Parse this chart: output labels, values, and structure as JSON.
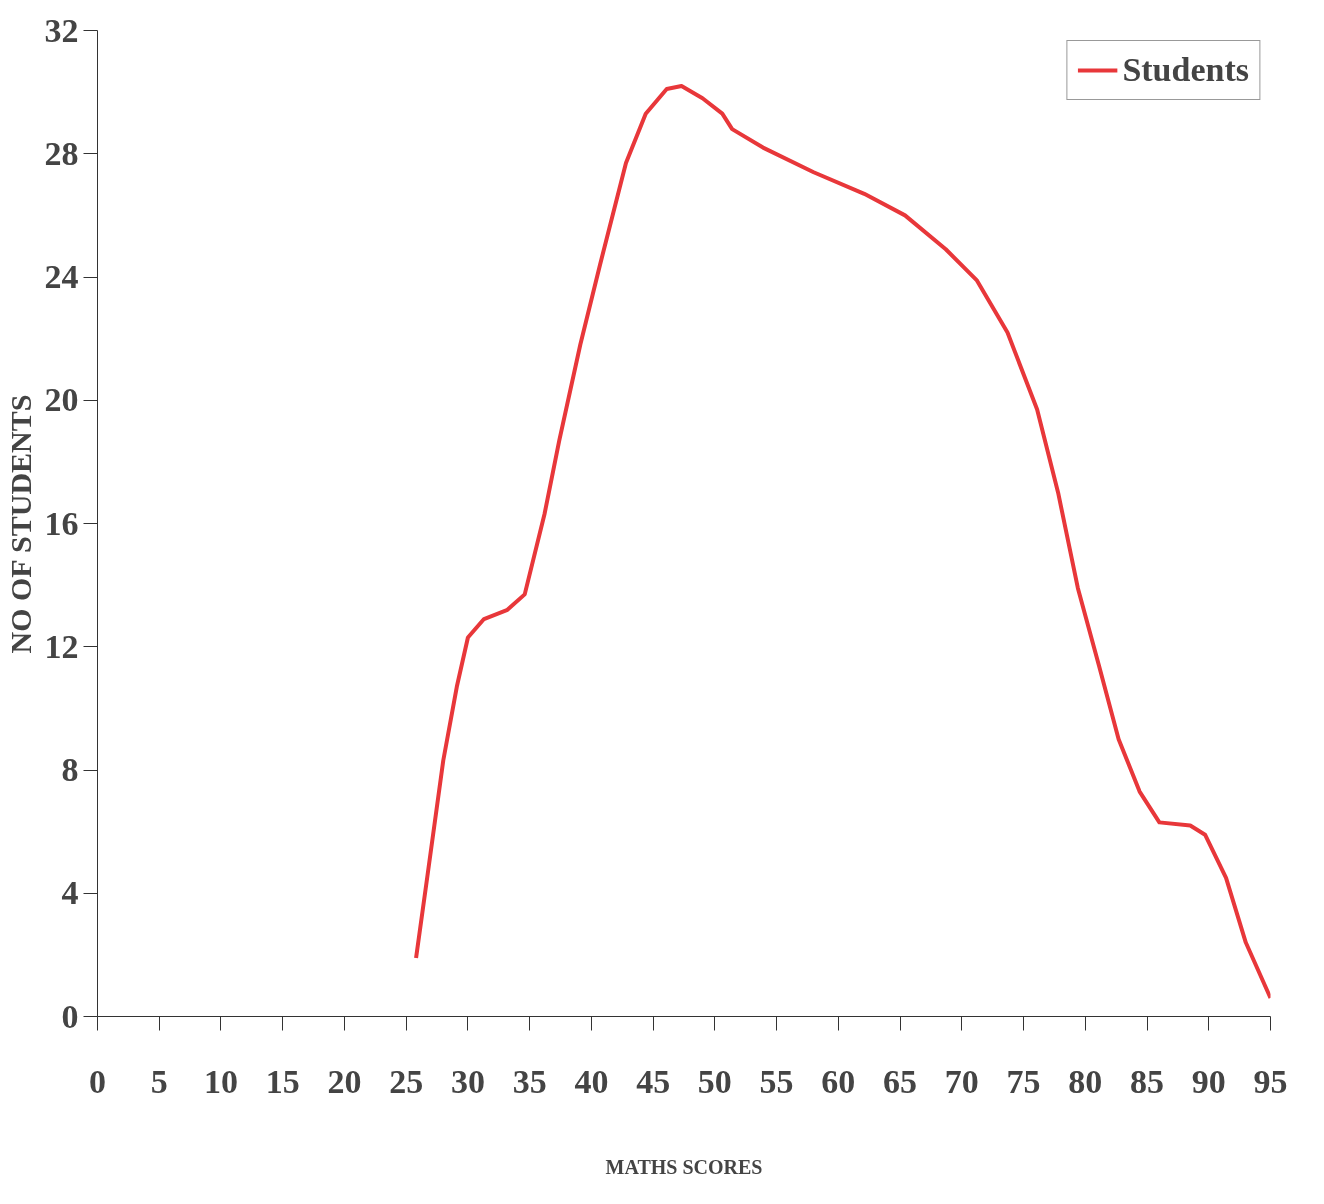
{
  "chart_data": {
    "type": "line",
    "xlabel": "MATHS SCORES",
    "ylabel": "NO OF STUDENTS",
    "xlim": [
      0,
      95
    ],
    "ylim": [
      0,
      32
    ],
    "xticks": [
      0,
      5,
      10,
      15,
      20,
      25,
      30,
      35,
      40,
      45,
      50,
      55,
      60,
      65,
      70,
      75,
      80,
      85,
      90,
      95
    ],
    "yticks": [
      0,
      4,
      8,
      12,
      16,
      20,
      24,
      28,
      32
    ],
    "grid": false,
    "legend": "top right",
    "marker": "none",
    "line_style": "solid",
    "series": [
      {
        "name": "Students",
        "color": "#e8373a",
        "x": [
          25.8,
          26.7,
          28.0,
          29.1,
          30.0,
          31.3,
          33.2,
          34.6,
          36.2,
          37.4,
          39.1,
          40.7,
          42.8,
          44.4,
          46.1,
          47.3,
          49.0,
          50.6,
          51.4,
          53.9,
          58.0,
          62.1,
          65.4,
          68.7,
          71.2,
          73.7,
          76.1,
          77.8,
          79.4,
          81.1,
          82.7,
          84.4,
          86.0,
          88.5,
          89.7,
          91.4,
          93.0,
          95.0
        ],
        "values": [
          1.9,
          4.5,
          8.3,
          10.7,
          12.3,
          12.9,
          13.2,
          13.7,
          16.3,
          18.7,
          21.8,
          24.4,
          27.7,
          29.3,
          30.1,
          30.2,
          29.8,
          29.3,
          28.8,
          28.2,
          27.4,
          26.7,
          26.0,
          24.9,
          23.9,
          22.2,
          19.7,
          17.0,
          13.9,
          11.4,
          9.0,
          7.3,
          6.3,
          6.2,
          5.9,
          4.5,
          2.4,
          0.6
        ]
      }
    ]
  }
}
